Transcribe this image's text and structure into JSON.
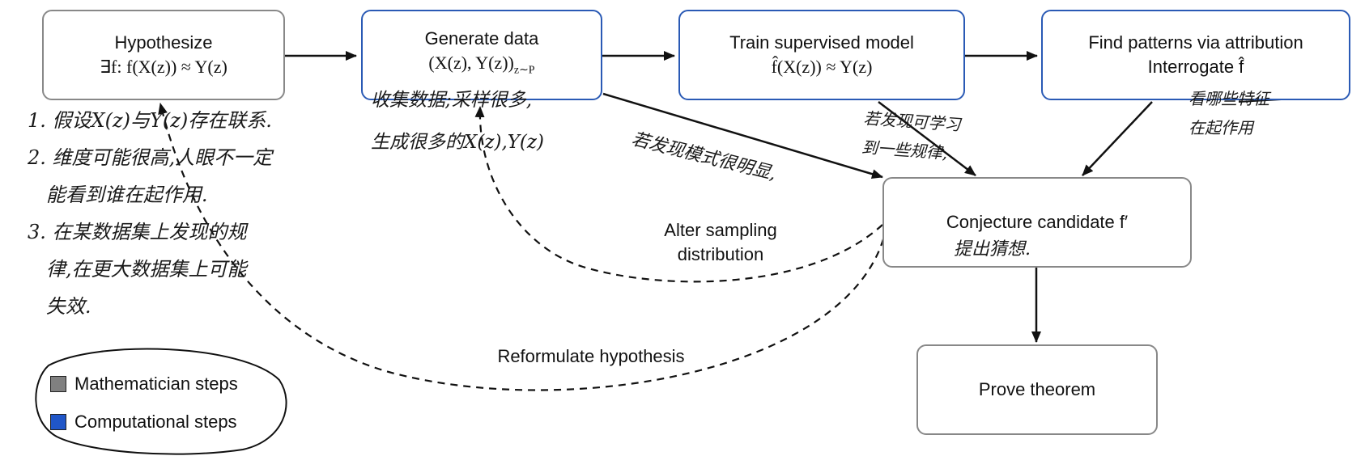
{
  "nodes": {
    "hypothesize": {
      "title": "Hypothesize",
      "formula": "∃f: f(X(z)) ≈ Y(z)"
    },
    "generate": {
      "title": "Generate data",
      "formula": "(X(z), Y(z))",
      "subscript": "z∼P"
    },
    "train": {
      "title": "Train supervised model",
      "formula": "f̂(X(z)) ≈ Y(z)"
    },
    "patterns": {
      "title": "Find patterns via attribution",
      "subtitle": "Interrogate f̂"
    },
    "conjecture": {
      "title": "Conjecture candidate f′"
    },
    "prove": {
      "title": "Prove theorem"
    }
  },
  "edge_labels": {
    "alter": "Alter sampling\ndistribution",
    "reformulate": "Reformulate hypothesis"
  },
  "handwritten_notes": {
    "hypothesize_notes": "1. 假设X(z)与Y(z)存在联系.\n2. 维度可能很高,人眼不一定\n   能看到谁在起作用.\n3. 在某数据集上发现的规\n   律,在更大数据集上可能\n   失效.",
    "generate_notes": "收集数据;采样很多,\n生成很多的X(z),Y(z)",
    "pattern_obvious": "若发现模式很明显,",
    "learned_patterns": "若发现可学习\n到一些规律,",
    "which_features": "看哪些特征\n在起作用",
    "propose_conjecture": "提出猜想."
  },
  "legend": {
    "items": [
      {
        "label": "Mathematician steps",
        "color": "#808080"
      },
      {
        "label": "Computational steps",
        "color": "#2056c8"
      }
    ]
  },
  "colors": {
    "math_border": "#888888",
    "comp_border": "#2a5ab5",
    "arrow": "#111111"
  }
}
